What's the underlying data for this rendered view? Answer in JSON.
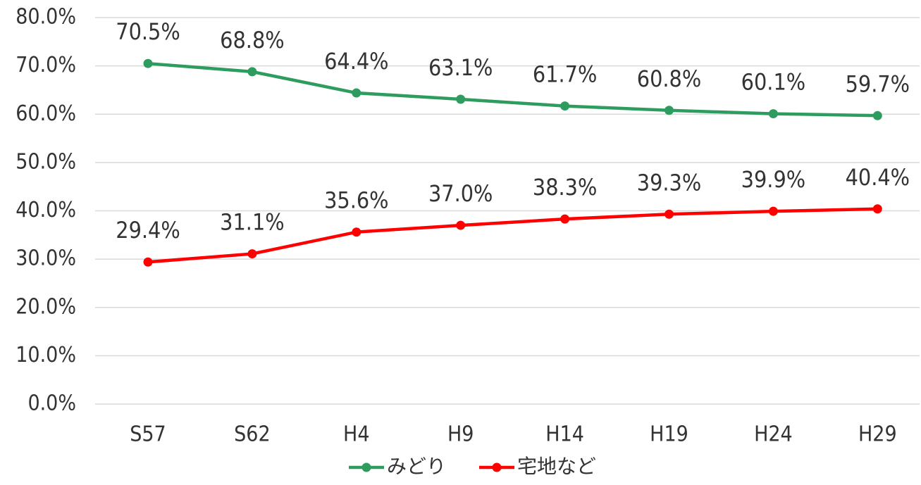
{
  "chart_data": {
    "type": "line",
    "categories": [
      "S57",
      "S62",
      "H4",
      "H9",
      "H14",
      "H19",
      "H24",
      "H29"
    ],
    "series": [
      {
        "name": "みどり",
        "color": "#2e9c5f",
        "values": [
          70.5,
          68.8,
          64.4,
          63.1,
          61.7,
          60.8,
          60.1,
          59.7
        ],
        "value_labels": [
          "70.5%",
          "68.8%",
          "64.4%",
          "63.1%",
          "61.7%",
          "60.8%",
          "60.1%",
          "59.7%"
        ]
      },
      {
        "name": "宅地など",
        "color": "#ff0000",
        "values": [
          29.4,
          31.1,
          35.6,
          37.0,
          38.3,
          39.3,
          39.9,
          40.4
        ],
        "value_labels": [
          "29.4%",
          "31.1%",
          "35.6%",
          "37.0%",
          "38.3%",
          "39.3%",
          "39.9%",
          "40.4%"
        ]
      }
    ],
    "ylim": [
      0,
      80
    ],
    "yticks": [
      {
        "value": 0,
        "label": "0.0%"
      },
      {
        "value": 10,
        "label": "10.0%"
      },
      {
        "value": 20,
        "label": "20.0%"
      },
      {
        "value": 30,
        "label": "30.0%"
      },
      {
        "value": 40,
        "label": "40.0%"
      },
      {
        "value": 50,
        "label": "50.0%"
      },
      {
        "value": 60,
        "label": "60.0%"
      },
      {
        "value": 70,
        "label": "70.0%"
      },
      {
        "value": 80,
        "label": "80.0%"
      }
    ],
    "grid": true,
    "legend": "bottom"
  }
}
